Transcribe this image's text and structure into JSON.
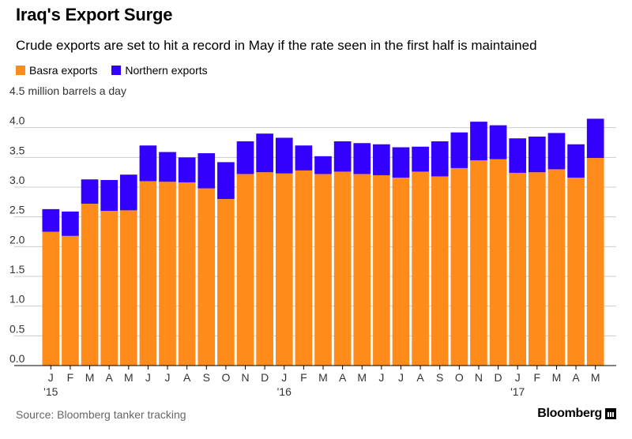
{
  "header": {
    "title": "Iraq's Export Surge",
    "subtitle": "Crude exports are set to hit a record in May if the rate seen in the first half is maintained"
  },
  "footer": {
    "source": "Source: Bloomberg tanker tracking",
    "brand": "Bloomberg"
  },
  "colors": {
    "basra": "#ff8c1a",
    "northern": "#3300ff",
    "gridline": "#cccccc",
    "baseline": "#000000"
  },
  "icons": {
    "brand_icon": "bloomberg-chart-icon"
  },
  "chart_data": {
    "type": "bar",
    "stacked": true,
    "title": "Iraq's Export Surge",
    "subtitle": "Crude exports are set to hit a record in May if the rate seen in the first half is maintained",
    "ylabel": "million barrels a day",
    "ylim": [
      0,
      4.5
    ],
    "yticks": [
      "0.0",
      "0.5",
      "1.0",
      "1.5",
      "2.0",
      "2.5",
      "3.0",
      "3.5",
      "4.0",
      "4.5"
    ],
    "grid": true,
    "legend_position": "top-left",
    "categories": [
      "J",
      "F",
      "M",
      "A",
      "M",
      "J",
      "J",
      "A",
      "S",
      "O",
      "N",
      "D",
      "J",
      "F",
      "M",
      "A",
      "M",
      "J",
      "J",
      "A",
      "S",
      "O",
      "N",
      "D",
      "J",
      "F",
      "M",
      "A",
      "M"
    ],
    "year_labels": [
      {
        "index": 0,
        "label": "'15"
      },
      {
        "index": 12,
        "label": "'16"
      },
      {
        "index": 24,
        "label": "'17"
      }
    ],
    "series": [
      {
        "name": "Basra exports",
        "values": [
          2.25,
          2.18,
          2.72,
          2.6,
          2.61,
          3.1,
          3.09,
          3.08,
          2.98,
          2.8,
          3.22,
          3.25,
          3.23,
          3.28,
          3.22,
          3.26,
          3.22,
          3.2,
          3.16,
          3.26,
          3.18,
          3.32,
          3.45,
          3.47,
          3.24,
          3.25,
          3.3,
          3.16,
          3.49
        ]
      },
      {
        "name": "Northern exports",
        "values": [
          0.38,
          0.41,
          0.41,
          0.52,
          0.6,
          0.6,
          0.5,
          0.42,
          0.59,
          0.62,
          0.55,
          0.65,
          0.6,
          0.42,
          0.3,
          0.51,
          0.52,
          0.52,
          0.51,
          0.42,
          0.59,
          0.6,
          0.65,
          0.57,
          0.58,
          0.6,
          0.61,
          0.56,
          0.66
        ]
      }
    ]
  }
}
